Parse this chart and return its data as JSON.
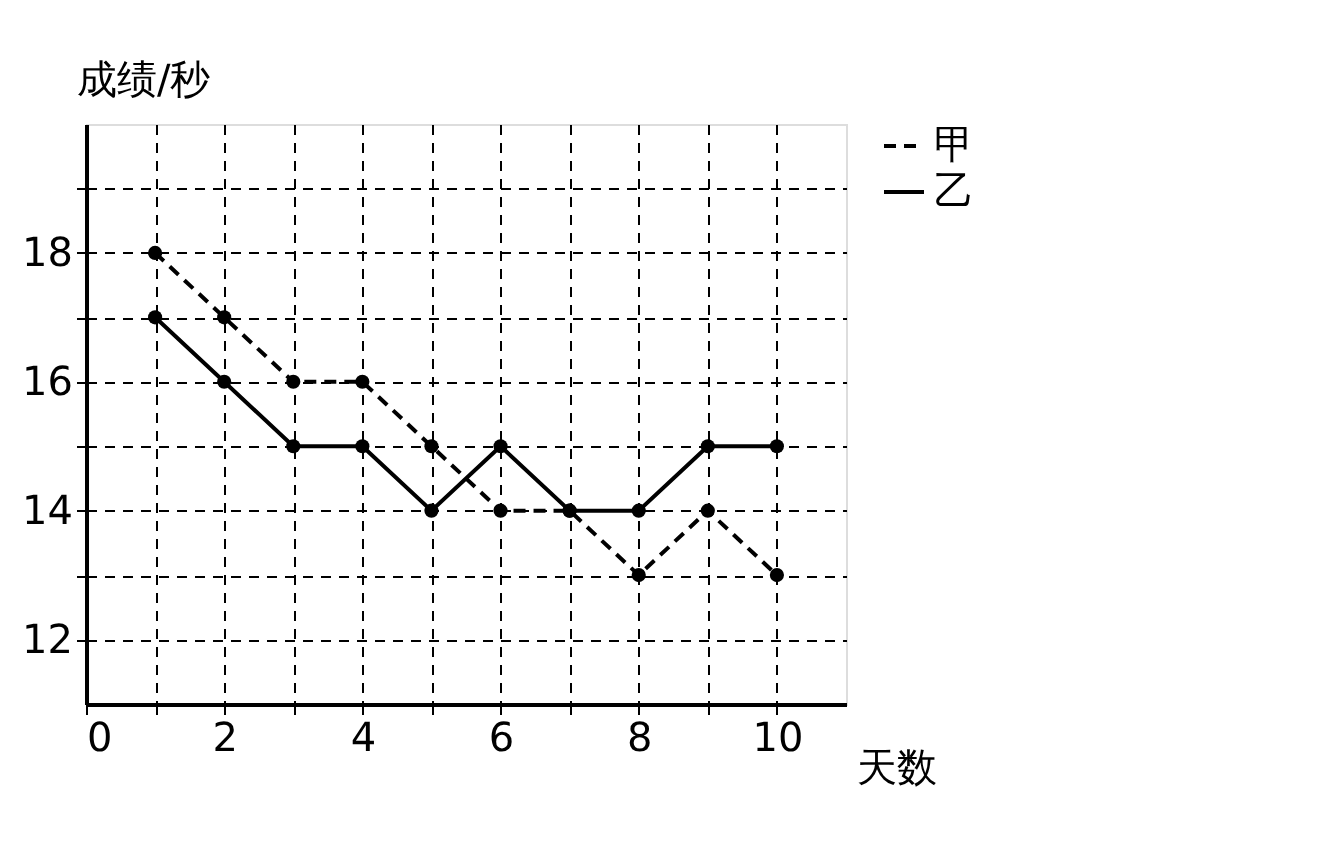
{
  "chart_data": {
    "type": "line",
    "xlabel": "天数",
    "ylabel": "成绩/秒",
    "x": [
      1,
      2,
      3,
      4,
      5,
      6,
      7,
      8,
      9,
      10
    ],
    "series": [
      {
        "name": "甲",
        "color": "#000000",
        "line_style": "dashed",
        "values": [
          18,
          17,
          16,
          16,
          15,
          14,
          14,
          13,
          14,
          13
        ]
      },
      {
        "name": "乙",
        "color": "#000000",
        "line_style": "solid",
        "values": [
          17,
          16,
          15,
          15,
          14,
          15,
          14,
          14,
          15,
          15
        ]
      }
    ],
    "xlim": [
      0,
      11
    ],
    "ylim": [
      11,
      20
    ],
    "xticks": [
      0,
      {
        "value": 1,
        "label": null
      },
      2,
      {
        "value": 3,
        "label": null
      },
      4,
      {
        "value": 5,
        "label": null
      },
      6,
      {
        "value": 7,
        "label": null
      },
      8,
      {
        "value": 9,
        "label": null
      },
      10
    ],
    "yticks": [
      12,
      {
        "value": 13,
        "label": null
      },
      14,
      {
        "value": 15,
        "label": null
      },
      16,
      {
        "value": 17,
        "label": null
      },
      18,
      {
        "value": 19,
        "label": null
      }
    ],
    "grid": true,
    "legend": "right",
    "marker": "circle"
  }
}
